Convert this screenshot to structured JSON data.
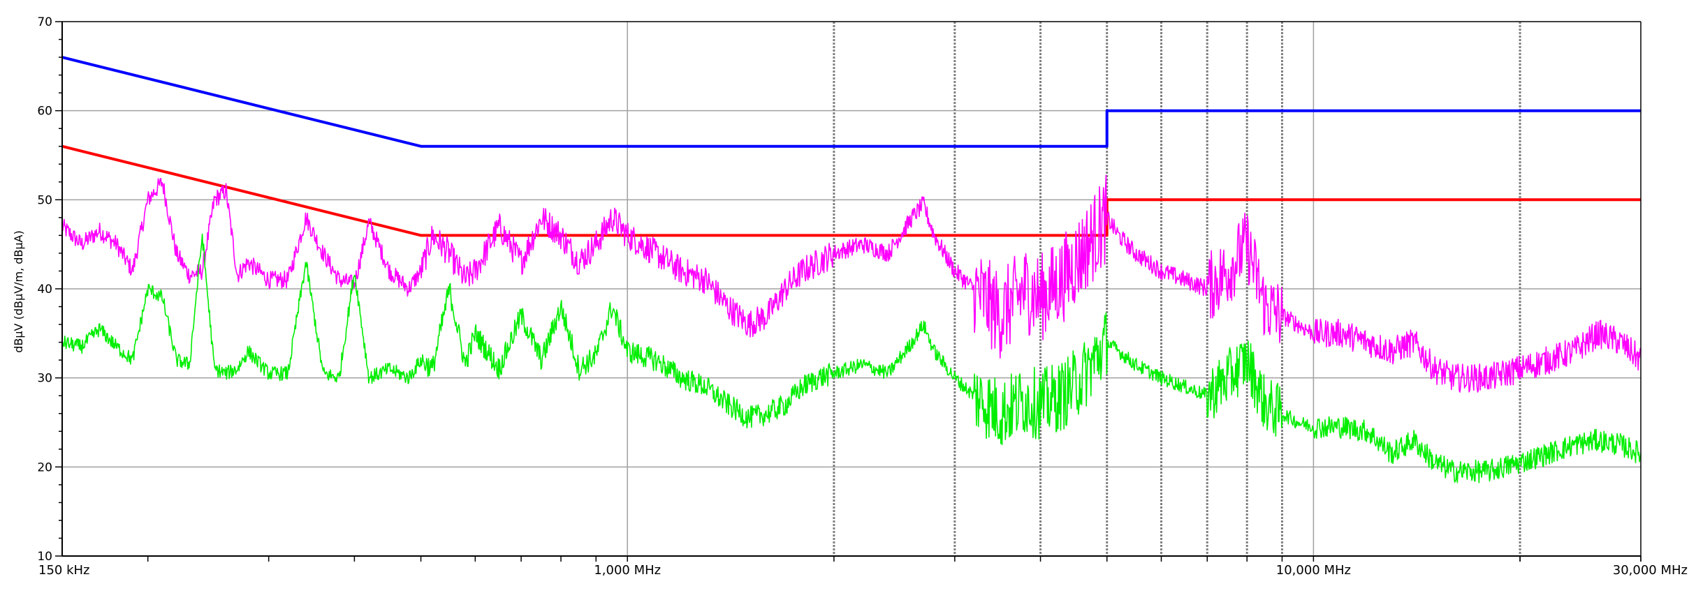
{
  "chart_data": {
    "type": "line",
    "title": "",
    "ylabel": "dBµV (dBµV/m, dBµA)",
    "xlabel": "",
    "x_scale": "log",
    "x_unit": "MHz",
    "xlim": [
      0.15,
      30
    ],
    "ylim": [
      10,
      70
    ],
    "y_ticks": [
      10,
      20,
      30,
      40,
      50,
      60,
      70
    ],
    "y_tick_labels": [
      "10",
      "20",
      "30",
      "40",
      "50",
      "60",
      "70"
    ],
    "x_tick_labels": [
      {
        "x": 0.15,
        "label": "150 kHz"
      },
      {
        "x": 1,
        "label": "1,000 MHz"
      },
      {
        "x": 10,
        "label": "10,000 MHz"
      },
      {
        "x": 30,
        "label": "30,000 MHz"
      }
    ],
    "x_gridlines_major": [
      1,
      10
    ],
    "x_gridlines_minor": [
      2,
      3,
      4,
      5,
      6,
      7,
      8,
      9,
      20
    ],
    "y_gridlines": [
      20,
      30,
      40,
      50,
      60
    ],
    "grid": true,
    "colors": {
      "qp_limit": "#0000ff",
      "avg_limit": "#ff0000",
      "peak_trace": "#ff00ff",
      "avg_trace": "#00ee00",
      "grid": "#a0a0a0",
      "axis": "#000000"
    },
    "series": [
      {
        "key": "qp_limit",
        "color": "#0000ff",
        "x": [
          0.15,
          0.5,
          0.5,
          5,
          5,
          30
        ],
        "y": [
          66,
          56,
          56,
          56,
          60,
          60
        ]
      },
      {
        "key": "avg_limit",
        "color": "#ff0000",
        "x": [
          0.15,
          0.5,
          0.5,
          5,
          5,
          30
        ],
        "y": [
          56,
          46,
          46,
          46,
          50,
          50
        ]
      },
      {
        "key": "peak_trace",
        "color": "#ff00ff",
        "x": [
          0.15,
          0.16,
          0.17,
          0.18,
          0.19,
          0.2,
          0.21,
          0.22,
          0.23,
          0.24,
          0.25,
          0.26,
          0.27,
          0.28,
          0.3,
          0.32,
          0.34,
          0.36,
          0.38,
          0.4,
          0.42,
          0.45,
          0.48,
          0.5,
          0.52,
          0.55,
          0.58,
          0.6,
          0.65,
          0.7,
          0.75,
          0.8,
          0.85,
          0.9,
          0.95,
          1.0,
          1.1,
          1.2,
          1.3,
          1.4,
          1.5,
          1.6,
          1.7,
          1.8,
          1.9,
          2.0,
          2.2,
          2.4,
          2.6,
          2.7,
          2.8,
          3.0,
          3.2,
          3.5,
          3.8,
          4.0,
          4.3,
          4.6,
          5.0,
          5.2,
          5.5,
          6.0,
          6.5,
          7.0,
          7.5,
          8.0,
          8.5,
          9.0,
          9.5,
          10.0,
          11,
          12,
          13,
          14,
          15,
          16,
          18,
          20,
          22,
          24,
          26,
          28,
          30
        ],
        "y": [
          47,
          45,
          46.5,
          45,
          42,
          50,
          52,
          44,
          41.5,
          42,
          50,
          51,
          41.5,
          43,
          41,
          41,
          48,
          44,
          41,
          40.5,
          47.5,
          42,
          40,
          42,
          46,
          44,
          41,
          42,
          47,
          43,
          48,
          46,
          43,
          45,
          48,
          46,
          44,
          42,
          41,
          38,
          36,
          37,
          40,
          42,
          43,
          44,
          45,
          44,
          48,
          49.5,
          46,
          42,
          40,
          37,
          40,
          39,
          41,
          44,
          48,
          46,
          44,
          42,
          41,
          40,
          42,
          45,
          38,
          37,
          36,
          35,
          35,
          34,
          33,
          34,
          31,
          30,
          30,
          31,
          32,
          33,
          35,
          34,
          32
        ]
      },
      {
        "key": "avg_trace",
        "color": "#00ee00",
        "x": [
          0.15,
          0.16,
          0.17,
          0.18,
          0.19,
          0.2,
          0.21,
          0.22,
          0.23,
          0.24,
          0.25,
          0.26,
          0.27,
          0.28,
          0.3,
          0.32,
          0.34,
          0.36,
          0.38,
          0.4,
          0.42,
          0.45,
          0.48,
          0.5,
          0.52,
          0.55,
          0.58,
          0.6,
          0.65,
          0.7,
          0.75,
          0.8,
          0.85,
          0.9,
          0.95,
          1.0,
          1.1,
          1.2,
          1.3,
          1.4,
          1.5,
          1.6,
          1.7,
          1.8,
          1.9,
          2.0,
          2.2,
          2.4,
          2.6,
          2.7,
          2.8,
          3.0,
          3.2,
          3.5,
          3.8,
          4.0,
          4.3,
          4.6,
          5.0,
          5.2,
          5.5,
          6.0,
          6.5,
          7.0,
          7.5,
          8.0,
          8.5,
          9.0,
          9.5,
          10.0,
          11,
          12,
          13,
          14,
          15,
          16,
          18,
          20,
          22,
          24,
          26,
          28,
          30
        ],
        "y": [
          34,
          33.5,
          35.5,
          33.5,
          32,
          40,
          39,
          32,
          31.5,
          46,
          31,
          30.5,
          31,
          33,
          30.5,
          30.5,
          43,
          30.5,
          30,
          42,
          30,
          31,
          30,
          32,
          31,
          40,
          31.5,
          35,
          31,
          37,
          32,
          38,
          31,
          32.5,
          38,
          33,
          32,
          30,
          29,
          27,
          25.5,
          26,
          27,
          29,
          30,
          30.5,
          31.5,
          30.5,
          34,
          36,
          33,
          30,
          28,
          26,
          27.5,
          27,
          28,
          30,
          34,
          33,
          31.5,
          30,
          29,
          28,
          30,
          32,
          27,
          26,
          25,
          24.5,
          24.5,
          24,
          21.5,
          23,
          20.5,
          19.5,
          19.5,
          20.5,
          21.5,
          22.5,
          23,
          22.5,
          21.5
        ]
      }
    ]
  }
}
